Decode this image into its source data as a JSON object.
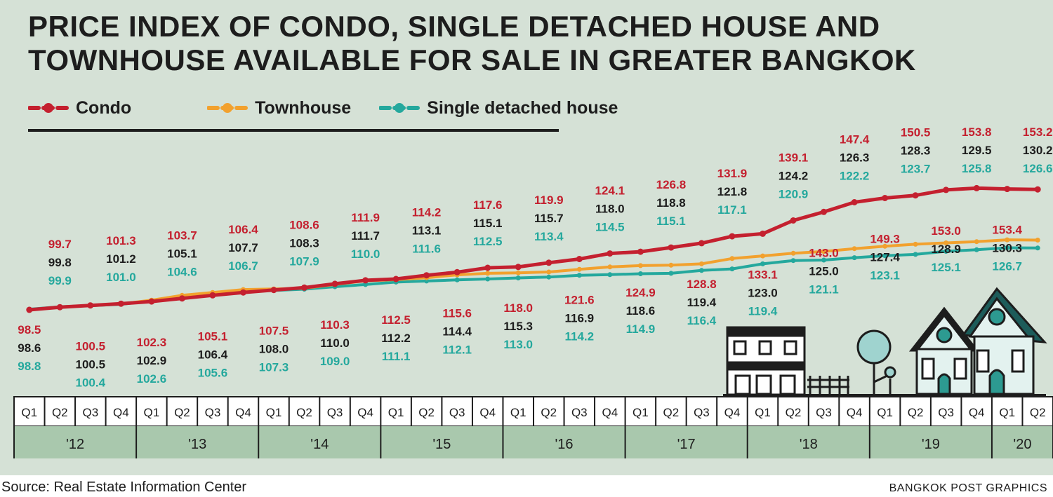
{
  "title": {
    "line1": "PRICE INDEX OF CONDO, SINGLE DETACHED HOUSE AND",
    "line2": "TOWNHOUSE AVAILABLE FOR SALE IN GREATER BANGKOK"
  },
  "legend": [
    {
      "label": "Condo",
      "color": "#c4202f"
    },
    {
      "label": "Townhouse",
      "color": "#f2a12e"
    },
    {
      "label": "Single detached house",
      "color": "#24a89d"
    }
  ],
  "source": "Source: Real Estate Information Center",
  "credit": "BANGKOK POST GRAPHICS",
  "chart_data": {
    "type": "line",
    "x": [
      "Q1 '12",
      "Q2 '12",
      "Q3 '12",
      "Q4 '12",
      "Q1 '13",
      "Q2 '13",
      "Q3 '13",
      "Q4 '13",
      "Q1 '14",
      "Q2 '14",
      "Q3 '14",
      "Q4 '14",
      "Q1 '15",
      "Q2 '15",
      "Q3 '15",
      "Q4 '15",
      "Q1 '16",
      "Q2 '16",
      "Q3 '16",
      "Q4 '16",
      "Q1 '17",
      "Q2 '17",
      "Q3 '17",
      "Q4 '17",
      "Q1 '18",
      "Q2 '18",
      "Q3 '18",
      "Q4 '18",
      "Q1 '19",
      "Q2 '19",
      "Q3 '19",
      "Q4 '19",
      "Q1 '20",
      "Q2 '20"
    ],
    "quarters": [
      "Q1",
      "Q2",
      "Q3",
      "Q4",
      "Q1",
      "Q2",
      "Q3",
      "Q4",
      "Q1",
      "Q2",
      "Q3",
      "Q4",
      "Q1",
      "Q2",
      "Q3",
      "Q4",
      "Q1",
      "Q2",
      "Q3",
      "Q4",
      "Q1",
      "Q2",
      "Q3",
      "Q4",
      "Q1",
      "Q2",
      "Q3",
      "Q4",
      "Q1",
      "Q2",
      "Q3",
      "Q4",
      "Q1",
      "Q2"
    ],
    "years": [
      "'12",
      "'13",
      "'14",
      "'15",
      "'16",
      "'17",
      "'18",
      "'19",
      "'20"
    ],
    "series": [
      {
        "name": "Condo",
        "color": "#c4202f",
        "values": [
          98.5,
          99.7,
          100.5,
          101.3,
          102.3,
          103.7,
          105.1,
          106.4,
          107.5,
          108.6,
          110.3,
          111.9,
          112.5,
          114.2,
          115.6,
          117.6,
          118.0,
          119.9,
          121.6,
          124.1,
          124.9,
          126.8,
          128.8,
          131.9,
          133.1,
          139.1,
          143.0,
          147.4,
          149.3,
          150.5,
          153.0,
          153.8,
          153.4,
          153.2
        ]
      },
      {
        "name": "Townhouse",
        "color": "#f2a12e",
        "values": [
          98.6,
          99.8,
          100.5,
          101.2,
          102.9,
          105.1,
          106.4,
          107.7,
          108.0,
          108.3,
          110.0,
          111.7,
          112.2,
          113.1,
          114.4,
          115.1,
          115.3,
          115.7,
          116.9,
          118.0,
          118.6,
          118.8,
          119.4,
          121.8,
          123.0,
          124.2,
          125.0,
          126.3,
          127.4,
          128.3,
          128.9,
          129.5,
          130.3,
          130.2
        ]
      },
      {
        "name": "Single detached house",
        "color": "#24a89d",
        "values": [
          98.8,
          99.9,
          100.4,
          101.0,
          102.6,
          104.6,
          105.6,
          106.7,
          107.3,
          107.9,
          109.0,
          110.0,
          111.1,
          111.6,
          112.1,
          112.5,
          113.0,
          113.4,
          114.2,
          114.5,
          114.9,
          115.1,
          116.4,
          117.1,
          119.4,
          120.9,
          121.1,
          122.2,
          123.1,
          123.7,
          125.1,
          125.8,
          126.7,
          126.6
        ]
      }
    ],
    "xlabel": "",
    "ylabel": "",
    "grid": false,
    "legend": "top-left"
  },
  "illustration": {
    "icon": "houses-and-tree-illustration"
  }
}
